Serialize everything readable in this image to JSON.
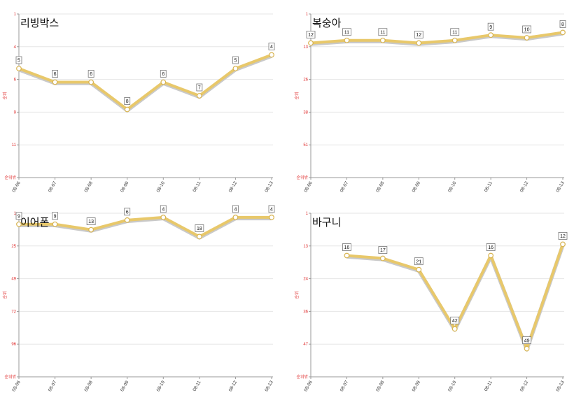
{
  "colors": {
    "line": "#e8c86a",
    "line_shadow": "#c9c9c9",
    "marker_fill": "#ffffff",
    "marker_stroke": "#d8b450",
    "grid": "#e6e6e6",
    "axis": "#999999",
    "tick_text_y": "#e03030"
  },
  "chart_data": [
    {
      "type": "line",
      "title": "리빙박스",
      "ylabel": "순위",
      "y_inverted": true,
      "ylim": [
        1,
        13
      ],
      "yticks": [
        "1",
        "4",
        "6",
        "9",
        "11",
        "순위밖"
      ],
      "categories": [
        "08-06",
        "08-07",
        "08-08",
        "08-09",
        "08-10",
        "08-11",
        "08-12",
        "08-13"
      ],
      "values": [
        5,
        6,
        6,
        8,
        6,
        7,
        5,
        4
      ],
      "labels": [
        "5",
        "6",
        "6",
        "8",
        "6",
        "7",
        "5",
        "4"
      ]
    },
    {
      "type": "line",
      "title": "복숭아",
      "ylabel": "순위",
      "y_inverted": true,
      "ylim": [
        1,
        63
      ],
      "yticks": [
        "1",
        "13",
        "26",
        "38",
        "51",
        "순위밖"
      ],
      "categories": [
        "08-06",
        "08-07",
        "08-08",
        "08-09",
        "08-10",
        "08-11",
        "08-12",
        "08-13"
      ],
      "values": [
        12,
        11,
        11,
        12,
        11,
        9,
        10,
        8
      ],
      "labels": [
        "12",
        "11",
        "11",
        "12",
        "11",
        "9",
        "10",
        "8"
      ]
    },
    {
      "type": "line",
      "title": "이어폰",
      "ylabel": "순위",
      "y_inverted": true,
      "ylim": [
        1,
        120
      ],
      "yticks": [
        "1",
        "25",
        "49",
        "72",
        "96",
        "순위밖"
      ],
      "categories": [
        "08-06",
        "08-07",
        "08-08",
        "08-09",
        "08-10",
        "08-11",
        "08-12",
        "08-13"
      ],
      "values": [
        9,
        9,
        13,
        6,
        4,
        18,
        4,
        4
      ],
      "labels": [
        "9",
        "9",
        "13",
        "6",
        "4",
        "18",
        "4",
        "4"
      ]
    },
    {
      "type": "line",
      "title": "바구니",
      "ylabel": "순위",
      "y_inverted": true,
      "ylim": [
        1,
        59
      ],
      "yticks": [
        "1",
        "13",
        "24",
        "36",
        "47",
        "순위밖"
      ],
      "categories": [
        "08-06",
        "08-07",
        "08-08",
        "08-09",
        "08-10",
        "08-11",
        "08-12",
        "08-13"
      ],
      "values": [
        null,
        16,
        17,
        21,
        42,
        16,
        49,
        12
      ],
      "labels": [
        null,
        "16",
        "17",
        "21",
        "42",
        "16",
        "49",
        "12"
      ]
    }
  ]
}
